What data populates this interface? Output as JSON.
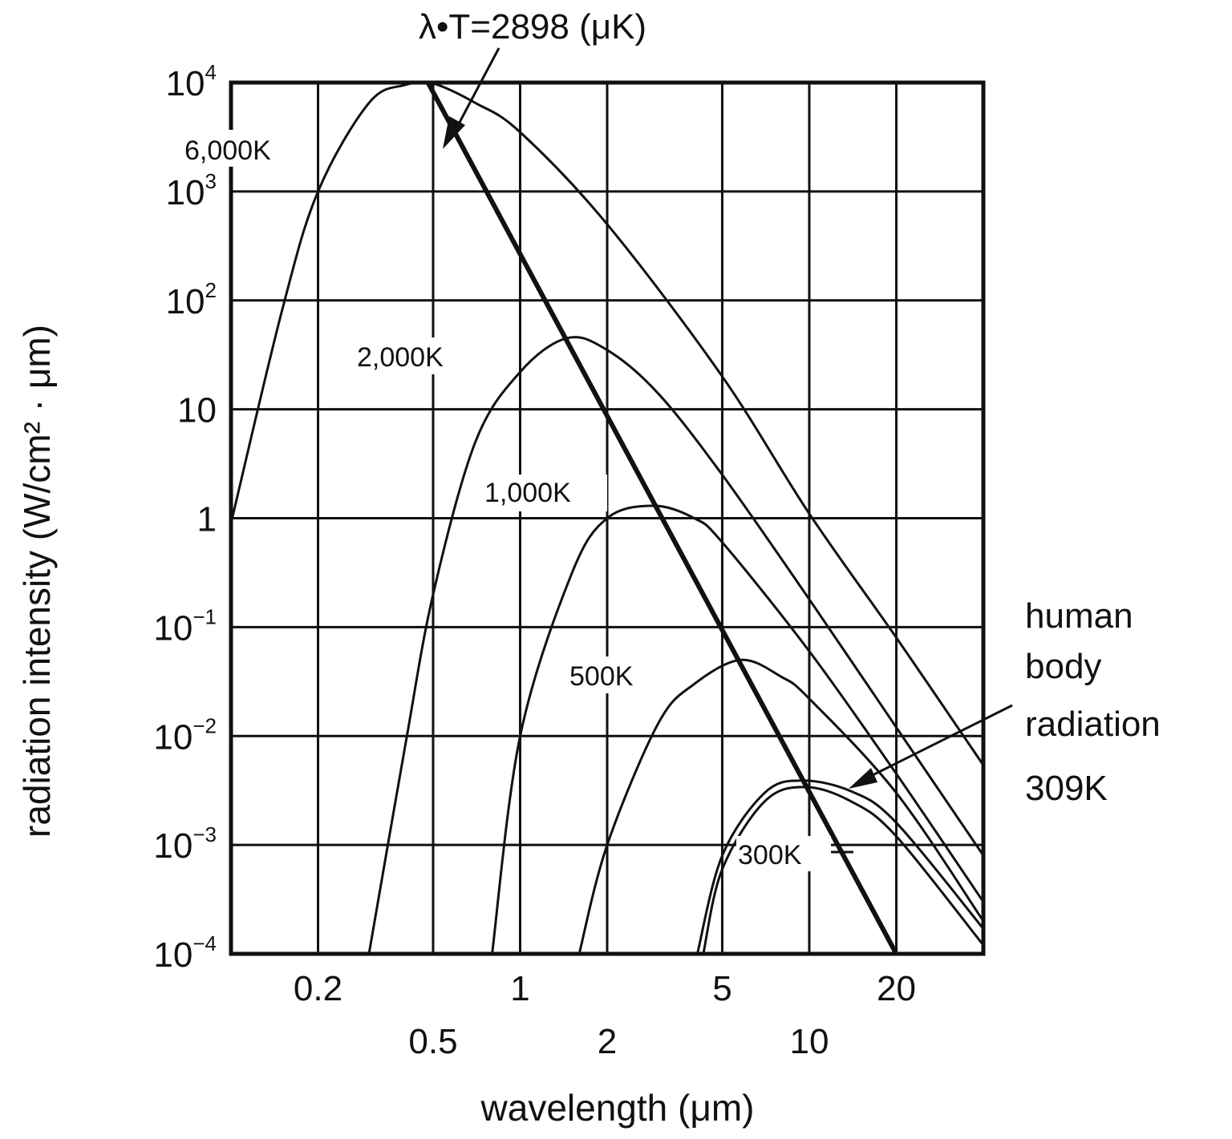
{
  "chart_data": {
    "type": "line",
    "title": "",
    "xlabel": "wavelength (μm)",
    "ylabel": "radiation intensity (W/cm² · μm)",
    "x_scale": "log",
    "y_scale": "log",
    "xlim": [
      0.1,
      40
    ],
    "ylim": [
      0.0001,
      10000
    ],
    "x_ticks": [
      {
        "value": 0.2,
        "label": "0.2",
        "row": 1
      },
      {
        "value": 0.5,
        "label": "0.5",
        "row": 2
      },
      {
        "value": 1,
        "label": "1",
        "row": 1
      },
      {
        "value": 2,
        "label": "2",
        "row": 2
      },
      {
        "value": 5,
        "label": "5",
        "row": 1
      },
      {
        "value": 10,
        "label": "10",
        "row": 2
      },
      {
        "value": 20,
        "label": "20",
        "row": 1
      }
    ],
    "x_grid": [
      0.2,
      0.5,
      1,
      2,
      5,
      10,
      20
    ],
    "y_ticks": [
      {
        "value": 10000,
        "base": "10",
        "exp": "4"
      },
      {
        "value": 1000,
        "base": "10",
        "exp": "3"
      },
      {
        "value": 100,
        "base": "10",
        "exp": "2"
      },
      {
        "value": 10,
        "base": "10",
        "exp": ""
      },
      {
        "value": 1,
        "base": "1",
        "exp": ""
      },
      {
        "value": 0.1,
        "base": "10",
        "exp": "−1"
      },
      {
        "value": 0.01,
        "base": "10",
        "exp": "−2"
      },
      {
        "value": 0.001,
        "base": "10",
        "exp": "−3"
      },
      {
        "value": 0.0001,
        "base": "10",
        "exp": "−4"
      }
    ],
    "grid": true,
    "series": [
      {
        "name": "6,000K",
        "temperature_K": 6000,
        "points": [
          [
            0.1,
            0.9
          ],
          [
            0.15,
            80
          ],
          [
            0.2,
            1000
          ],
          [
            0.3,
            6500
          ],
          [
            0.4,
            9500
          ],
          [
            0.5,
            9800
          ],
          [
            0.7,
            6500
          ],
          [
            1,
            3500
          ],
          [
            2,
            500
          ],
          [
            5,
            20
          ],
          [
            10,
            1.1
          ],
          [
            20,
            0.08
          ],
          [
            40,
            0.0054
          ]
        ]
      },
      {
        "name": "2,000K",
        "temperature_K": 2000,
        "points": [
          [
            0.3,
            0.0001
          ],
          [
            0.4,
            0.008
          ],
          [
            0.5,
            0.2
          ],
          [
            0.7,
            5
          ],
          [
            1,
            22
          ],
          [
            1.45,
            45
          ],
          [
            2,
            35
          ],
          [
            3,
            14
          ],
          [
            5,
            2.5
          ],
          [
            10,
            0.18
          ],
          [
            20,
            0.012
          ],
          [
            40,
            0.0008
          ]
        ]
      },
      {
        "name": "1,000K",
        "temperature_K": 1000,
        "points": [
          [
            0.8,
            0.0001
          ],
          [
            1,
            0.01
          ],
          [
            1.5,
            0.3
          ],
          [
            2,
            1
          ],
          [
            2.9,
            1.3
          ],
          [
            4,
            1
          ],
          [
            5,
            0.6
          ],
          [
            10,
            0.06
          ],
          [
            20,
            0.0045
          ],
          [
            40,
            0.0003
          ]
        ]
      },
      {
        "name": "500K",
        "temperature_K": 500,
        "points": [
          [
            1.6,
            0.0001
          ],
          [
            2,
            0.001
          ],
          [
            3,
            0.013
          ],
          [
            4,
            0.03
          ],
          [
            5.8,
            0.05
          ],
          [
            8,
            0.035
          ],
          [
            10,
            0.022
          ],
          [
            20,
            0.003
          ],
          [
            40,
            0.0002
          ]
        ]
      },
      {
        "name": "300K",
        "temperature_K": 300,
        "points": [
          [
            4.3,
            0.0001
          ],
          [
            5,
            0.0006
          ],
          [
            7,
            0.0025
          ],
          [
            9.66,
            0.0034
          ],
          [
            14,
            0.0025
          ],
          [
            20,
            0.0012
          ],
          [
            40,
            0.00012
          ]
        ]
      },
      {
        "name": "309K",
        "temperature_K": 309,
        "points": [
          [
            4.1,
            0.0001
          ],
          [
            5,
            0.0008
          ],
          [
            7,
            0.003
          ],
          [
            9.4,
            0.0039
          ],
          [
            14,
            0.0031
          ],
          [
            20,
            0.0016
          ],
          [
            40,
            0.00017
          ]
        ]
      }
    ],
    "wien_line": {
      "label": "λ·T=2898 (μK)",
      "points": [
        [
          0.48,
          10000
        ],
        [
          20,
          0.0001
        ]
      ]
    },
    "annotations": {
      "wien_label": "λ•T=2898 (μK)",
      "body_lines": [
        "human",
        "body",
        "radiation",
        "309K"
      ]
    },
    "colors": {
      "ink": "#111111",
      "background": "#ffffff"
    }
  }
}
